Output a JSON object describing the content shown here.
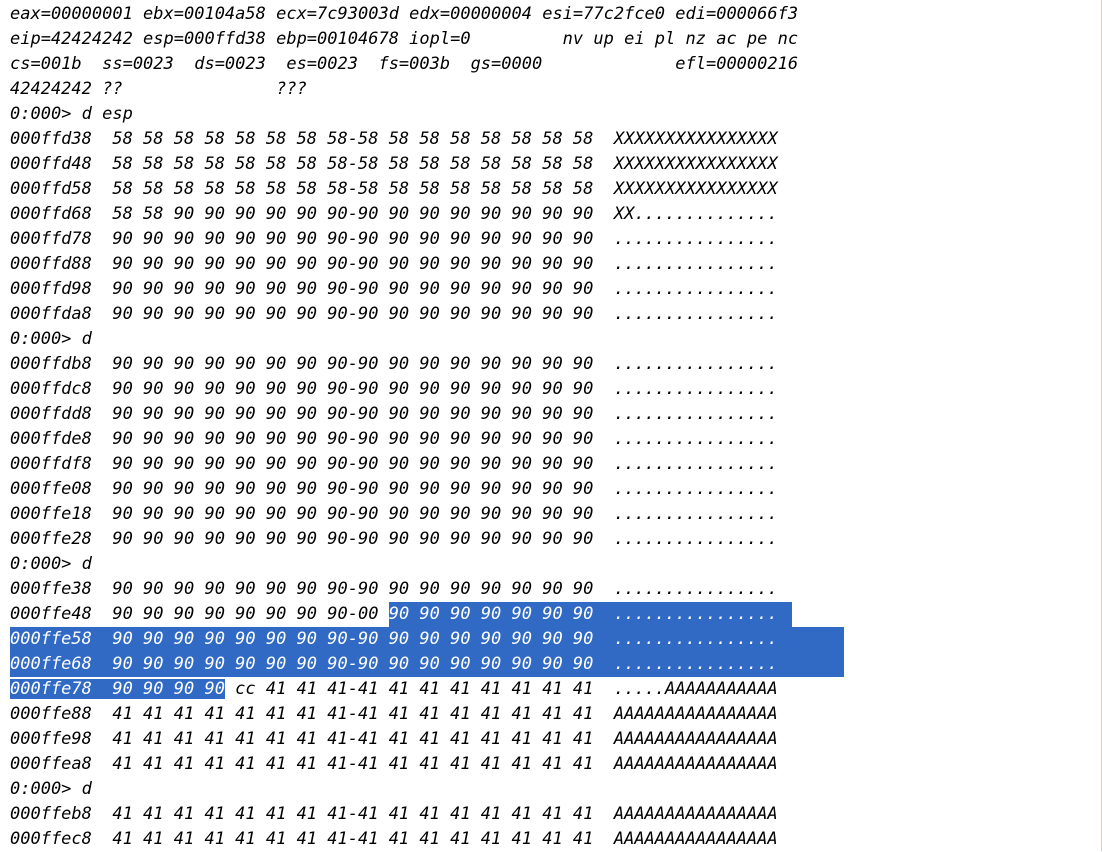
{
  "registers": {
    "line1": "eax=00000001 ebx=00104a58 ecx=7c93003d edx=00000004 esi=77c2fce0 edi=000066f3",
    "line2": "eip=42424242 esp=000ffd38 ebp=00104678 iopl=0         nv up ei pl nz ac pe nc",
    "line3": "cs=001b  ss=0023  ds=0023  es=0023  fs=003b  gs=0000             efl=00000216",
    "line4": "42424242 ??               ???"
  },
  "commands": {
    "c1": "0:000> d esp",
    "c2": "0:000> d",
    "c3": "0:000> d",
    "c4": "0:000> d"
  },
  "dump_block1": [
    "000ffd38  58 58 58 58 58 58 58 58-58 58 58 58 58 58 58 58  XXXXXXXXXXXXXXXX",
    "000ffd48  58 58 58 58 58 58 58 58-58 58 58 58 58 58 58 58  XXXXXXXXXXXXXXXX",
    "000ffd58  58 58 58 58 58 58 58 58-58 58 58 58 58 58 58 58  XXXXXXXXXXXXXXXX",
    "000ffd68  58 58 90 90 90 90 90 90-90 90 90 90 90 90 90 90  XX..............",
    "000ffd78  90 90 90 90 90 90 90 90-90 90 90 90 90 90 90 90  ................",
    "000ffd88  90 90 90 90 90 90 90 90-90 90 90 90 90 90 90 90  ................",
    "000ffd98  90 90 90 90 90 90 90 90-90 90 90 90 90 90 90 90  ................",
    "000ffda8  90 90 90 90 90 90 90 90-90 90 90 90 90 90 90 90  ................"
  ],
  "dump_block2": [
    "000ffdb8  90 90 90 90 90 90 90 90-90 90 90 90 90 90 90 90  ................",
    "000ffdc8  90 90 90 90 90 90 90 90-90 90 90 90 90 90 90 90  ................",
    "000ffdd8  90 90 90 90 90 90 90 90-90 90 90 90 90 90 90 90  ................",
    "000ffde8  90 90 90 90 90 90 90 90-90 90 90 90 90 90 90 90  ................",
    "000ffdf8  90 90 90 90 90 90 90 90-90 90 90 90 90 90 90 90  ................",
    "000ffe08  90 90 90 90 90 90 90 90-90 90 90 90 90 90 90 90  ................",
    "000ffe18  90 90 90 90 90 90 90 90-90 90 90 90 90 90 90 90  ................",
    "000ffe28  90 90 90 90 90 90 90 90-90 90 90 90 90 90 90 90  ................"
  ],
  "dump_block3": {
    "row1": "000ffe38  90 90 90 90 90 90 90 90-90 90 90 90 90 90 90 90  ................",
    "row2_plain": "000ffe48  90 90 90 90 90 90 90 90-00 ",
    "row2_selected": "90 90 90 90 90 90 90  ................",
    "row3": "000ffe58  90 90 90 90 90 90 90 90-90 90 90 90 90 90 90 90  ................",
    "row4": "000ffe68  90 90 90 90 90 90 90 90-90 90 90 90 90 90 90 90  ................",
    "row5_selected": "000ffe78  90 90 90 90",
    "row5_plain": " cc 41 41 41-41 41 41 41 41 41 41 41  .....AAAAAAAAAAA",
    "row6": "000ffe88  41 41 41 41 41 41 41 41-41 41 41 41 41 41 41 41  AAAAAAAAAAAAAAAA",
    "row7": "000ffe98  41 41 41 41 41 41 41 41-41 41 41 41 41 41 41 41  AAAAAAAAAAAAAAAA",
    "row8": "000ffea8  41 41 41 41 41 41 41 41-41 41 41 41 41 41 41 41  AAAAAAAAAAAAAAAA"
  },
  "dump_block4": [
    "000ffeb8  41 41 41 41 41 41 41 41-41 41 41 41 41 41 41 41  AAAAAAAAAAAAAAAA",
    "000ffec8  41 41 41 41 41 41 41 41-41 41 41 41 41 41 41 41  AAAAAAAAAAAAAAAA"
  ],
  "colors": {
    "selection": "#316ac5",
    "text": "#000000",
    "background": "#ffffff"
  }
}
